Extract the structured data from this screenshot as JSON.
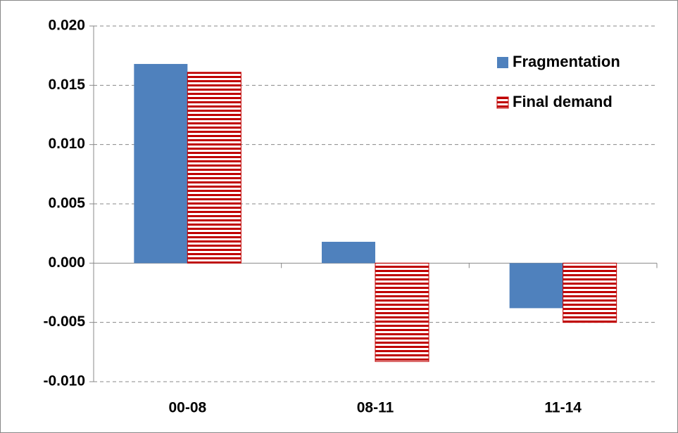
{
  "chart_data": {
    "type": "bar",
    "categories": [
      "00-08",
      "08-11",
      "11-14"
    ],
    "series": [
      {
        "name": "Fragmentation",
        "color": "#4f81bd",
        "values": [
          0.0168,
          0.0018,
          -0.0038
        ]
      },
      {
        "name": "Final demand",
        "color": "#c00000",
        "hatch": "horizontal",
        "values": [
          0.0161,
          -0.0083,
          -0.005
        ]
      }
    ],
    "ylim": [
      -0.01,
      0.02
    ],
    "yticks": [
      {
        "value": -0.01,
        "label": "-0.010"
      },
      {
        "value": -0.005,
        "label": "-0.005"
      },
      {
        "value": 0,
        "label": "0.000"
      },
      {
        "value": 0.005,
        "label": "0.005"
      },
      {
        "value": 0.01,
        "label": "0.010"
      },
      {
        "value": 0.015,
        "label": "0.015"
      },
      {
        "value": 0.02,
        "label": "0.020"
      }
    ],
    "grid": true,
    "legend": "upper right"
  }
}
